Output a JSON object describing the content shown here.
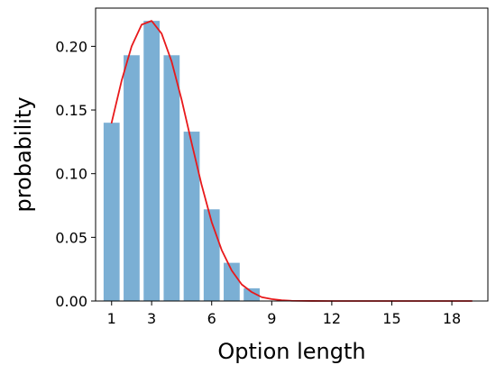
{
  "chart_data": {
    "type": "bar",
    "xlabel": "Option length",
    "ylabel": "probability",
    "xlim": [
      0.2,
      19.8
    ],
    "ylim": [
      0.0,
      0.23
    ],
    "grid": false,
    "legend": "none",
    "x_ticks": [
      1,
      3,
      6,
      9,
      12,
      15,
      18
    ],
    "x_tick_labels": [
      "1",
      "3",
      "6",
      "9",
      "12",
      "15",
      "18"
    ],
    "y_ticks": [
      0.0,
      0.05,
      0.1,
      0.15,
      0.2
    ],
    "y_tick_labels": [
      "0.00",
      "0.05",
      "0.10",
      "0.15",
      "0.20"
    ],
    "bars": {
      "color": "#7BAFD4",
      "x": [
        1,
        2,
        3,
        4,
        5,
        6,
        7,
        8
      ],
      "values": [
        0.14,
        0.193,
        0.22,
        0.193,
        0.133,
        0.072,
        0.03,
        0.01
      ]
    },
    "curve": {
      "color": "#E8191B",
      "x": [
        1,
        1.5,
        2,
        2.5,
        3,
        3.5,
        4,
        4.5,
        5,
        5.5,
        6,
        6.5,
        7,
        7.5,
        8,
        8.5,
        9,
        9.5,
        10,
        11,
        12,
        13,
        14,
        15,
        16,
        17,
        18,
        19
      ],
      "y": [
        0.14,
        0.173,
        0.2,
        0.217,
        0.22,
        0.21,
        0.188,
        0.158,
        0.124,
        0.091,
        0.062,
        0.04,
        0.024,
        0.013,
        0.007,
        0.003,
        0.0015,
        0.0006,
        0.0002,
        3e-05,
        0.0,
        0.0,
        0.0,
        0.0,
        0.0,
        0.0,
        0.0,
        0.0
      ]
    }
  }
}
